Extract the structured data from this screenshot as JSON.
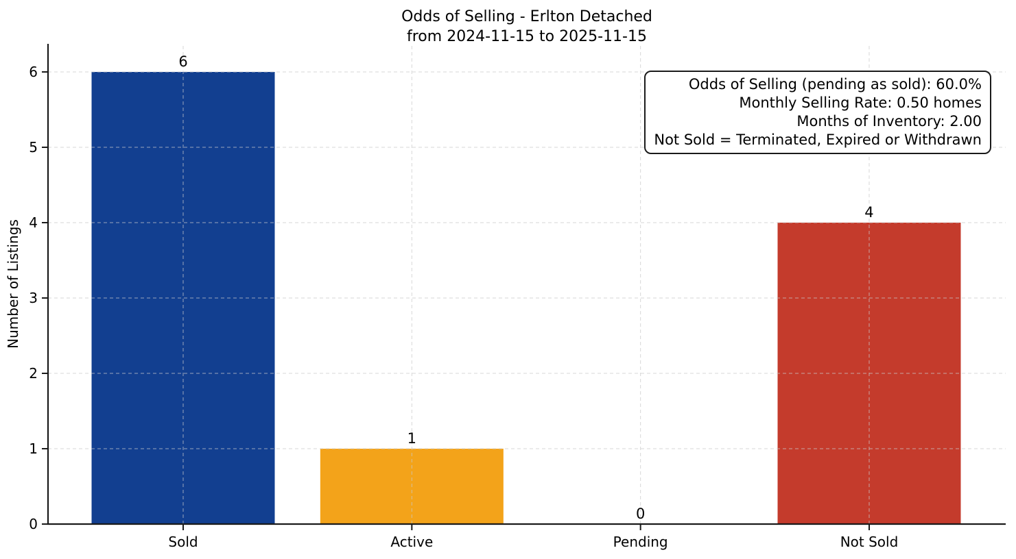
{
  "title": {
    "line1": "Odds of Selling - Erlton Detached",
    "line2": "from 2024-11-15 to 2025-11-15"
  },
  "chart_data": {
    "type": "bar",
    "title": "Odds of Selling - Erlton Detached\nfrom 2024-11-15 to 2025-11-15",
    "categories": [
      "Sold",
      "Active",
      "Pending",
      "Not Sold"
    ],
    "values": [
      6,
      1,
      0,
      4
    ],
    "bar_value_labels": [
      "6",
      "1",
      "0",
      "4"
    ],
    "bar_colors": [
      "#123f90",
      "#f3a31a",
      "#999999",
      "#c43b2c"
    ],
    "xlabel": "",
    "ylabel": "Number of Listings",
    "ylim": [
      0,
      6.37
    ],
    "yticks": [
      0,
      1,
      2,
      3,
      4,
      5,
      6
    ],
    "grid": {
      "style": "dashed",
      "axes": "both",
      "color": "#c9c9c9"
    },
    "legend_position": "none",
    "axis_color": "#1a1a1a",
    "text_color": "#000000",
    "annotation": {
      "lines": [
        "Odds of Selling (pending as sold): 60.0%",
        "Monthly Selling Rate: 0.50 homes",
        "Months of Inventory: 2.00",
        "Not Sold = Terminated, Expired or Withdrawn"
      ]
    }
  }
}
